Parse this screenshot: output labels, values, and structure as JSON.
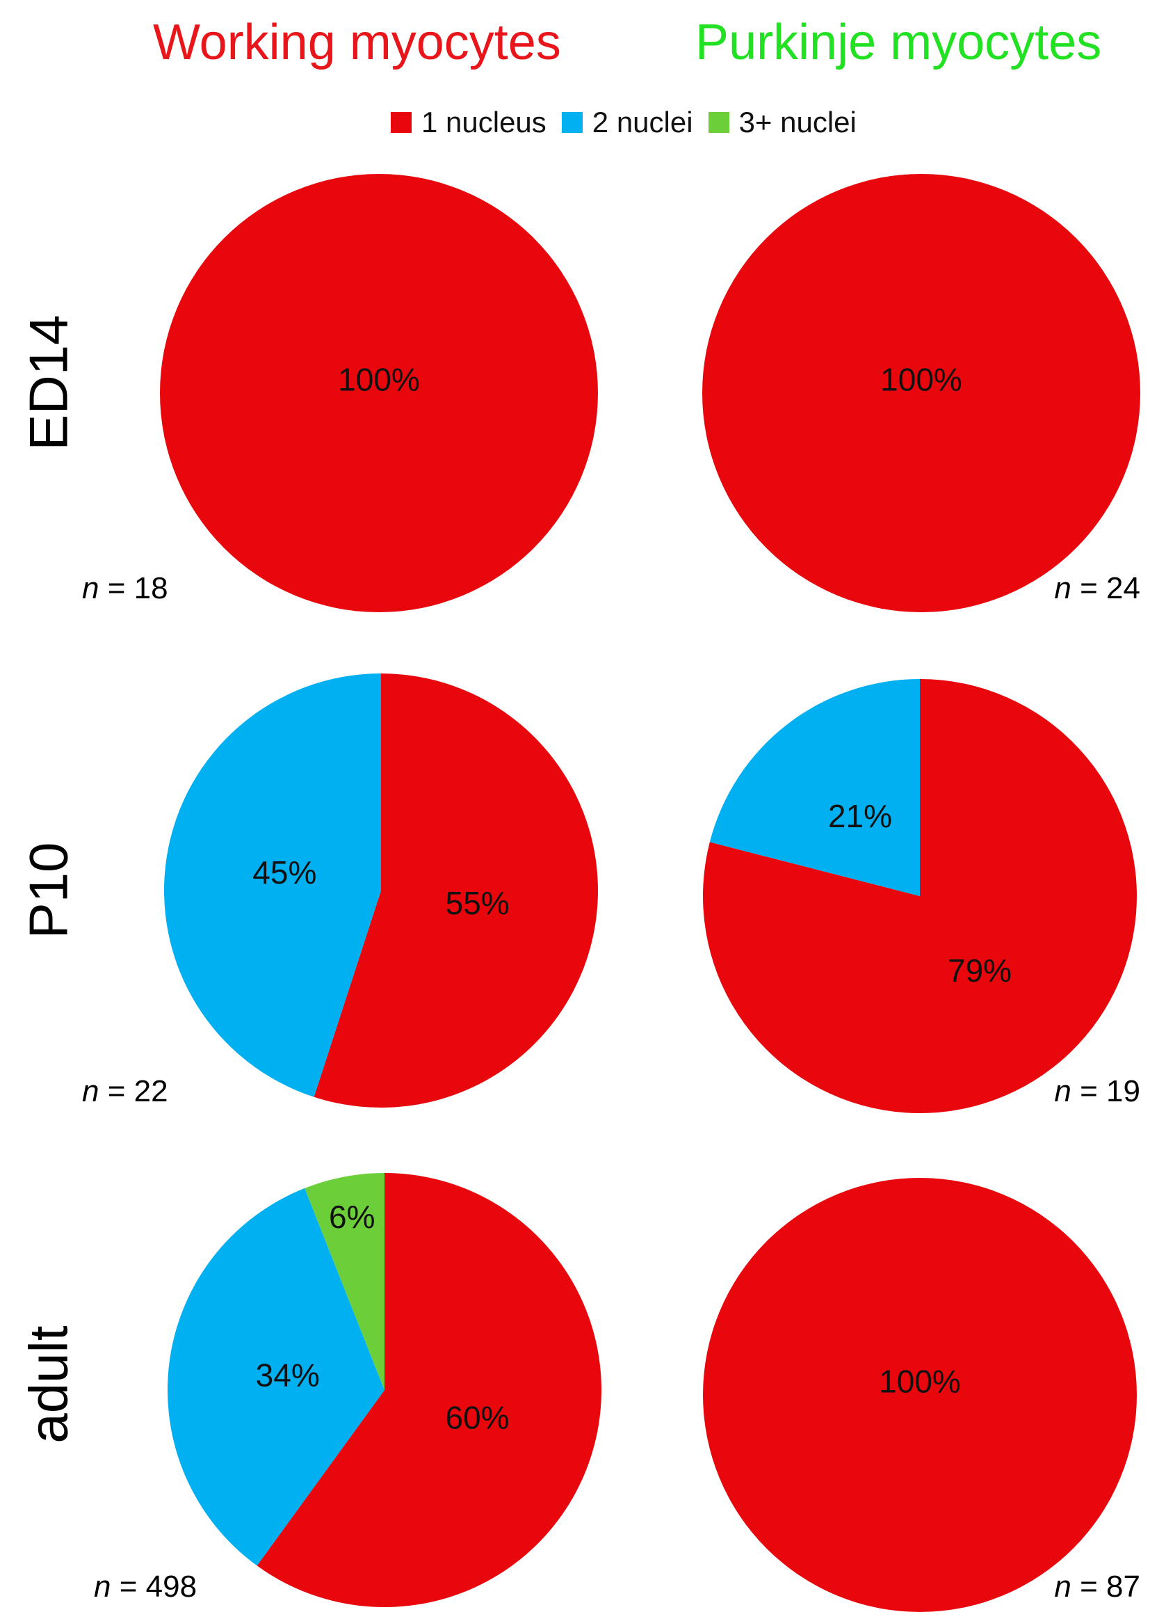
{
  "column_titles": [
    "Working myocytes",
    "Purkinje myocytes"
  ],
  "row_labels": [
    "ED14",
    "P10",
    "adult"
  ],
  "colors": {
    "working_title": "#e8151a",
    "purkinje_title": "#22e022",
    "one_nucleus": "#e8070d",
    "two_nuclei": "#00b0f0",
    "three_plus_nuclei": "#6ccf3a"
  },
  "legend": [
    "1 nucleus",
    "2 nuclei",
    "3+ nuclei"
  ],
  "chart_data": [
    {
      "type": "pie",
      "row": "ED14",
      "column": "Working myocytes",
      "n": "18",
      "labels": [
        "1 nucleus",
        "2 nuclei",
        "3+ nuclei"
      ],
      "values": [
        100,
        0,
        0
      ],
      "slice_labels": [
        "100%",
        "",
        ""
      ]
    },
    {
      "type": "pie",
      "row": "ED14",
      "column": "Purkinje myocytes",
      "n": "24",
      "labels": [
        "1 nucleus",
        "2 nuclei",
        "3+ nuclei"
      ],
      "values": [
        100,
        0,
        0
      ],
      "slice_labels": [
        "100%",
        "",
        ""
      ]
    },
    {
      "type": "pie",
      "row": "P10",
      "column": "Working myocytes",
      "n": "22",
      "labels": [
        "1 nucleus",
        "2 nuclei",
        "3+ nuclei"
      ],
      "values": [
        55,
        45,
        0
      ],
      "slice_labels": [
        "55%",
        "45%",
        ""
      ]
    },
    {
      "type": "pie",
      "row": "P10",
      "column": "Purkinje myocytes",
      "n": "19",
      "labels": [
        "1 nucleus",
        "2 nuclei",
        "3+ nuclei"
      ],
      "values": [
        79,
        21,
        0
      ],
      "slice_labels": [
        "79%",
        "21%",
        ""
      ]
    },
    {
      "type": "pie",
      "row": "adult",
      "column": "Working myocytes",
      "n": "498",
      "labels": [
        "1 nucleus",
        "2 nuclei",
        "3+ nuclei"
      ],
      "values": [
        60,
        34,
        6
      ],
      "slice_labels": [
        "60%",
        "34%",
        "6%"
      ]
    },
    {
      "type": "pie",
      "row": "adult",
      "column": "Purkinje myocytes",
      "n": "87",
      "labels": [
        "1 nucleus",
        "2 nuclei",
        "3+ nuclei"
      ],
      "values": [
        100,
        0,
        0
      ],
      "slice_labels": [
        "100%",
        "",
        ""
      ]
    }
  ]
}
